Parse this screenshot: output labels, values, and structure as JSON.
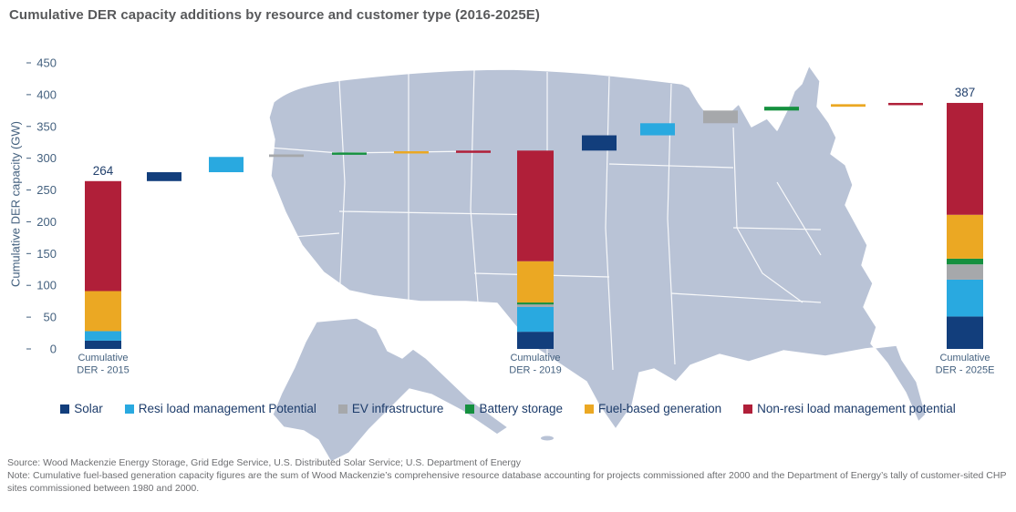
{
  "title": "Cumulative DER capacity additions by resource and customer type (2016-2025E)",
  "y_axis": {
    "label": "Cumulative DER capacity (GW)"
  },
  "legend": [
    {
      "label": "Solar",
      "color": "#123e7c"
    },
    {
      "label": "Resi load management Potential",
      "color": "#29a9e0"
    },
    {
      "label": "EV infrastructure",
      "color": "#a6a8ab"
    },
    {
      "label": "Battery storage",
      "color": "#15903f"
    },
    {
      "label": "Fuel-based generation",
      "color": "#eba823"
    },
    {
      "label": "Non-resi load management potential",
      "color": "#b01f39"
    }
  ],
  "footer": {
    "source": "Source: Wood Mackenzie Energy Storage, Grid Edge Service, U.S. Distributed Solar Service; U.S. Department of Energy",
    "note": "Note: Cumulative fuel-based generation capacity figures are the sum of Wood Mackenzie’s comprehensive resource database accounting for projects commissioned after 2000 and the Department of Energy’s tally of customer-sited CHP sites commissioned between 1980 and 2000."
  },
  "colors": {
    "map_fill": "#b9c3d6",
    "map_border": "#ffffff",
    "axis_text": "#44617f",
    "value_label": "#24426e",
    "title_text": "#58595b",
    "footer_text": "#6d6e71"
  },
  "chart_data": {
    "type": "bar",
    "subtype": "stacked bars with waterfall additions over a US map",
    "title": "Cumulative DER capacity additions by resource and customer type (2016-2025E)",
    "xlabel": "",
    "ylabel": "Cumulative DER capacity (GW)",
    "ylim": [
      0,
      450
    ],
    "yticks": [
      0,
      50,
      100,
      150,
      200,
      250,
      300,
      350,
      400,
      450
    ],
    "grid": false,
    "legend_position": "bottom",
    "series": [
      "Solar",
      "Resi load management Potential",
      "EV infrastructure",
      "Battery storage",
      "Fuel-based generation",
      "Non-resi load management potential"
    ],
    "bars": [
      {
        "label_lines": [
          "Cumulative",
          "DER - 2015"
        ],
        "x_center": 113,
        "total": 264,
        "total_label": "264",
        "values": [
          13,
          15,
          0,
          0,
          63,
          173
        ]
      },
      {
        "label_lines": [
          "Cumulative",
          "DER - 2019"
        ],
        "x_center": 587,
        "total": 312,
        "total_label": "",
        "values": [
          27,
          39,
          4,
          3,
          65,
          174
        ]
      },
      {
        "label_lines": [
          "Cumulative",
          "DER - 2025E"
        ],
        "x_center": 1058,
        "total": 387,
        "total_label": "387",
        "values": [
          51,
          58,
          24,
          9,
          69,
          176
        ]
      }
    ],
    "waterfall": [
      {
        "series": "Solar",
        "x_center": 180,
        "from": 264,
        "to": 278
      },
      {
        "series": "Resi load management Potential",
        "x_center": 248,
        "from": 278,
        "to": 302
      },
      {
        "series": "EV infrastructure",
        "x_center": 314,
        "from": 302,
        "to": 306
      },
      {
        "series": "Battery storage",
        "x_center": 383,
        "from": 306,
        "to": 309
      },
      {
        "series": "Fuel-based generation",
        "x_center": 451,
        "from": 309,
        "to": 311
      },
      {
        "series": "Non-resi load management potential",
        "x_center": 519,
        "from": 311,
        "to": 312
      },
      {
        "series": "Solar",
        "x_center": 657,
        "from": 312,
        "to": 336
      },
      {
        "series": "Resi load management Potential",
        "x_center": 721,
        "from": 336,
        "to": 355
      },
      {
        "series": "EV infrastructure",
        "x_center": 790,
        "from": 355,
        "to": 375
      },
      {
        "series": "Battery storage",
        "x_center": 857,
        "from": 375,
        "to": 381
      },
      {
        "series": "Fuel-based generation",
        "x_center": 930,
        "from": 381,
        "to": 385
      },
      {
        "series": "Non-resi load management potential",
        "x_center": 993,
        "from": 385,
        "to": 387
      }
    ]
  }
}
